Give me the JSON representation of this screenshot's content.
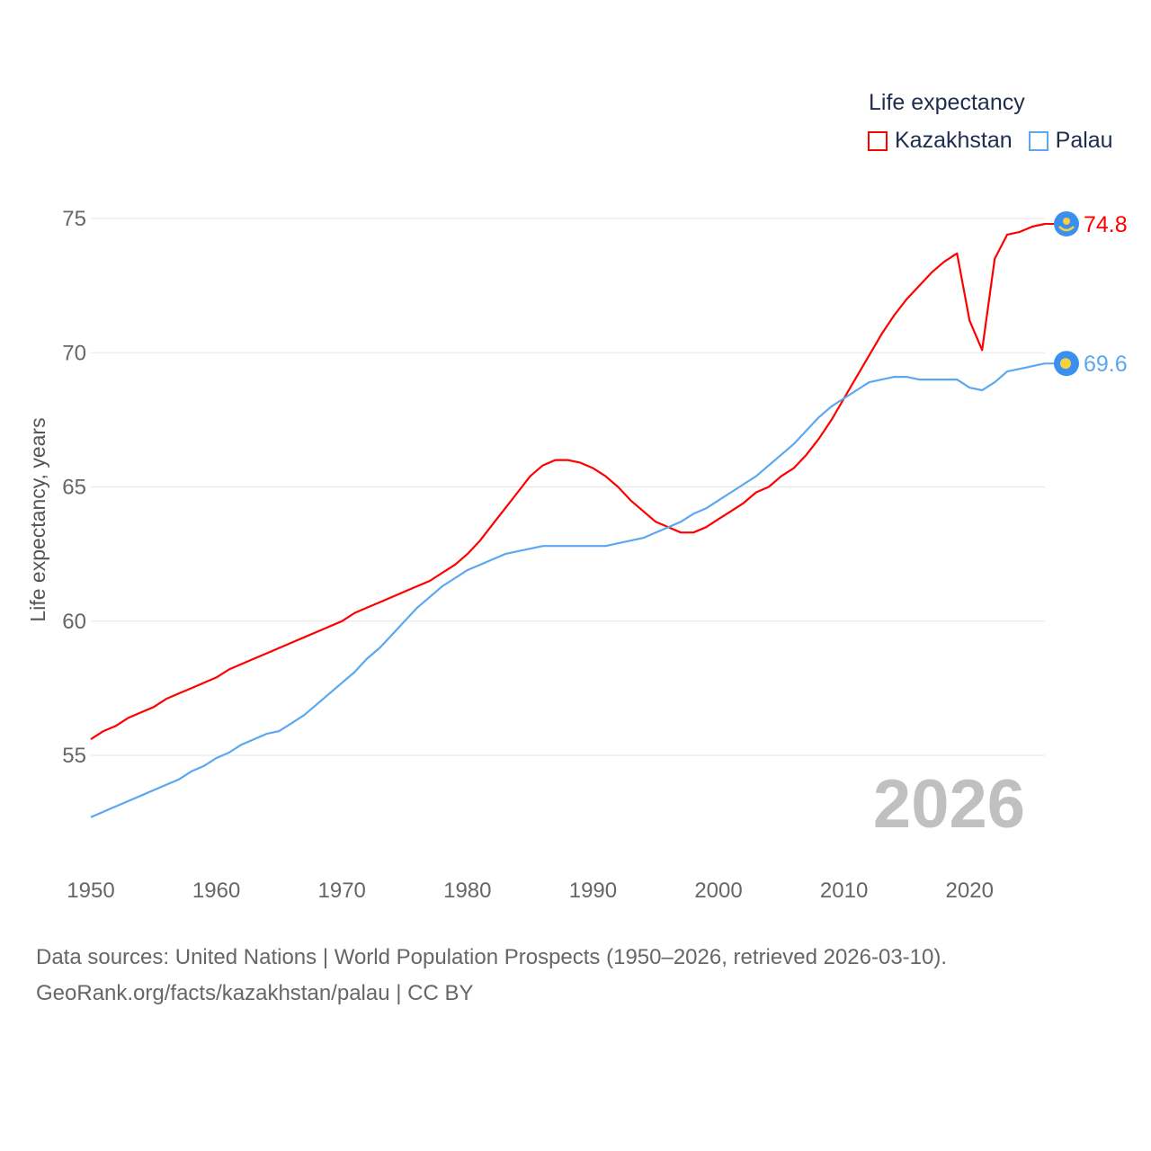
{
  "chart_data": {
    "type": "line",
    "legend_title": "Life expectancy",
    "ylabel": "Life expectancy, years",
    "xlabel": "",
    "ylim": [
      51.5,
      76.5
    ],
    "xlim": [
      1950,
      2026
    ],
    "yticks": [
      55,
      60,
      65,
      70,
      75
    ],
    "xticks": [
      1950,
      1960,
      1970,
      1980,
      1990,
      2000,
      2010,
      2020
    ],
    "grid": true,
    "legend_position": "top-right",
    "year_label": "2026",
    "series": [
      {
        "name": "Kazakhstan",
        "color": "#ff0000",
        "end_label": "74.8",
        "flag": "kazakhstan-flag",
        "values": [
          55.6,
          55.9,
          56.1,
          56.4,
          56.6,
          56.8,
          57.1,
          57.3,
          57.5,
          57.7,
          57.9,
          58.2,
          58.4,
          58.6,
          58.8,
          59.0,
          59.2,
          59.4,
          59.6,
          59.8,
          60.0,
          60.3,
          60.5,
          60.7,
          60.9,
          61.1,
          61.3,
          61.5,
          61.8,
          62.1,
          62.5,
          63.0,
          63.6,
          64.2,
          64.8,
          65.4,
          65.8,
          66.0,
          66.0,
          65.9,
          65.7,
          65.4,
          65.0,
          64.5,
          64.1,
          63.7,
          63.5,
          63.3,
          63.3,
          63.5,
          63.8,
          64.1,
          64.4,
          64.8,
          65.0,
          65.4,
          65.7,
          66.2,
          66.8,
          67.5,
          68.3,
          69.1,
          69.9,
          70.7,
          71.4,
          72.0,
          72.5,
          73.0,
          73.4,
          73.7,
          71.2,
          70.1,
          73.5,
          74.4,
          74.5,
          74.7,
          74.8
        ]
      },
      {
        "name": "Palau",
        "color": "#5ba7f0",
        "end_label": "69.6",
        "flag": "palau-flag",
        "values": [
          52.7,
          52.9,
          53.1,
          53.3,
          53.5,
          53.7,
          53.9,
          54.1,
          54.4,
          54.6,
          54.9,
          55.1,
          55.4,
          55.6,
          55.8,
          55.9,
          56.2,
          56.5,
          56.9,
          57.3,
          57.7,
          58.1,
          58.6,
          59.0,
          59.5,
          60.0,
          60.5,
          60.9,
          61.3,
          61.6,
          61.9,
          62.1,
          62.3,
          62.5,
          62.6,
          62.7,
          62.8,
          62.8,
          62.8,
          62.8,
          62.8,
          62.8,
          62.9,
          63.0,
          63.1,
          63.3,
          63.5,
          63.7,
          64.0,
          64.2,
          64.5,
          64.8,
          65.1,
          65.4,
          65.8,
          66.2,
          66.6,
          67.1,
          67.6,
          68.0,
          68.3,
          68.6,
          68.9,
          69.0,
          69.1,
          69.1,
          69.0,
          69.0,
          69.0,
          69.0,
          68.7,
          68.6,
          68.9,
          69.3,
          69.4,
          69.5,
          69.6
        ]
      }
    ]
  },
  "source_line1": "Data sources: United Nations | World Population Prospects (1950–2026, retrieved 2026-03-10).",
  "source_line2": "GeoRank.org/facts/kazakhstan/palau | CC BY"
}
